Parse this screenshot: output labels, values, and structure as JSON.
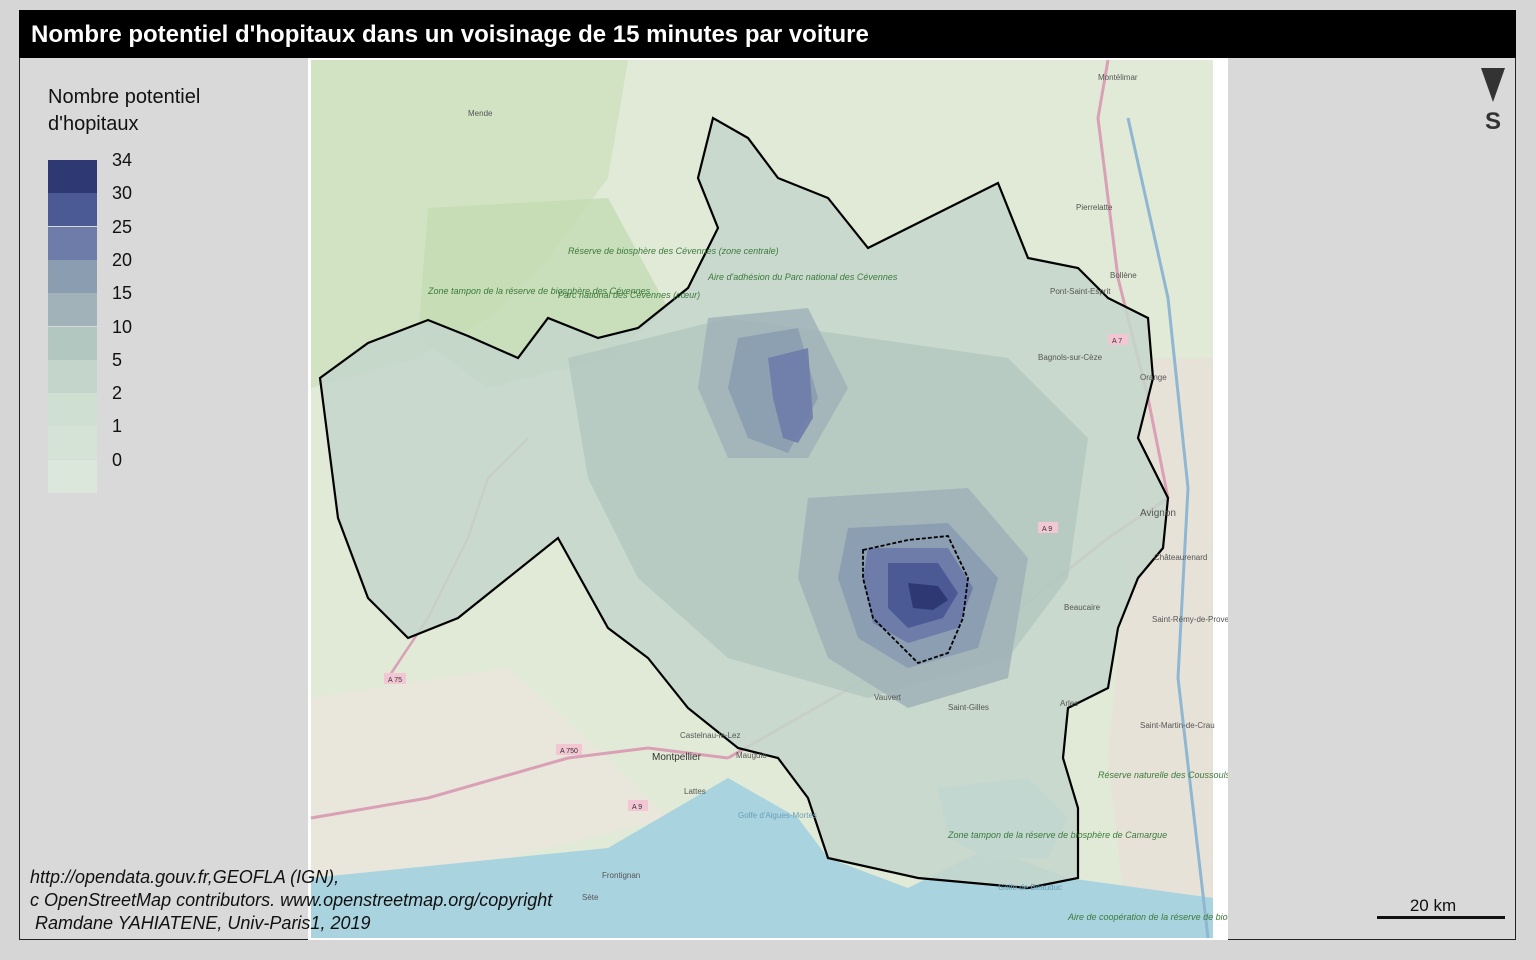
{
  "title": "Nombre potentiel d'hopitaux dans un voisinage de 15 minutes par voiture",
  "legend": {
    "title_line1": "Nombre potentiel",
    "title_line2": "d'hopitaux",
    "classes": [
      {
        "label": "34",
        "color": "#2e3872"
      },
      {
        "label": "30",
        "color": "#4b5a94"
      },
      {
        "label": "25",
        "color": "#6d7ca8"
      },
      {
        "label": "20",
        "color": "#8a9db1"
      },
      {
        "label": "15",
        "color": "#a1b3b8"
      },
      {
        "label": "10",
        "color": "#b3c7c1"
      },
      {
        "label": "5",
        "color": "#c4d6cb"
      },
      {
        "label": "2",
        "color": "#cfdfd2"
      },
      {
        "label": "1",
        "color": "#d5e3d6"
      },
      {
        "label": "0",
        "color": "#dce7db"
      }
    ]
  },
  "north_arrow": {
    "letter": "S"
  },
  "scale_bar": {
    "label": "20 km"
  },
  "source": {
    "line1": "http://opendata.gouv.fr,GEOFLA (IGN),",
    "line2": "c OpenStreetMap contributors. www.openstreetmap.org/copyright",
    "line3": " Ramdane YAHIATENE, Univ-Paris1, 2019"
  },
  "basemap_labels": {
    "mende": "Mende",
    "montelimar": "Montélimar",
    "pierrelatte": "Pierrelatte",
    "bollene": "Bollène",
    "pont_saint_esprit": "Pont-Saint-Esprit",
    "bagnols": "Bagnols-sur-Cèze",
    "orange": "Orange",
    "avignon": "Avignon",
    "chateaurenard": "Châteaurenard",
    "saint_remy": "Saint-Rémy-de-Provence",
    "arles": "Arles",
    "saint_martin": "Saint-Martin-de-Crau",
    "vauvert": "Vauvert",
    "saint_gilles": "Saint-Gilles",
    "beaucaire": "Beaucaire",
    "montpellier": "Montpellier",
    "castelnau": "Castelnau-le-Lez",
    "lattes": "Lattes",
    "mauguio": "Mauguio",
    "frontignan": "Frontignan",
    "sete": "Sète",
    "golfe_aigues": "Golfe d'Aigues-Mortes",
    "golfe_beauduc": "Golfe de Beauduc",
    "parc_cevennes": "Parc national des Cévennes (cœur)",
    "aire_adhesion": "Aire d'adhésion du Parc national des Cévennes",
    "zone_tampon_cevennes": "Zone tampon de la réserve de biosphère des Cévennes",
    "reserve_cevennes": "Réserve de biosphère des Cévennes (zone centrale)",
    "zone_tampon_camargue": "Zone tampon de la réserve de biosphère de Camargue",
    "aire_cooperation": "Aire de coopération de la réserve de biosphère de Camargue",
    "reserve_coussouls": "Réserve naturelle des Coussouls de Crau",
    "road_a75": "A 75",
    "road_a750": "A 750",
    "road_a9_west": "A 9",
    "road_a9_east": "A 9",
    "road_a7": "A 7"
  }
}
